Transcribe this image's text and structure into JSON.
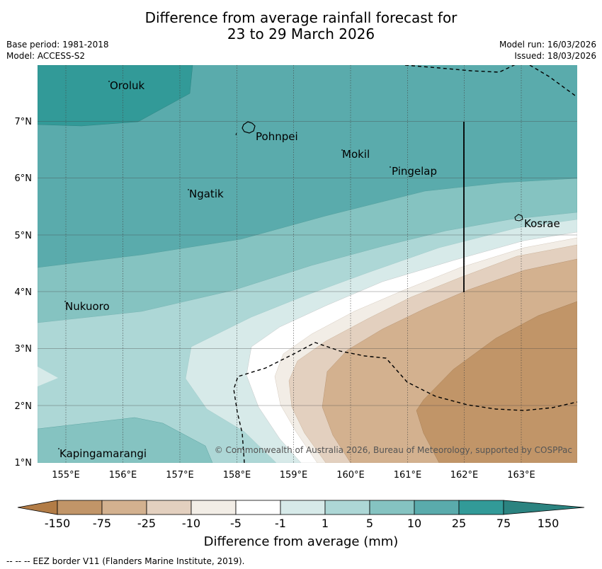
{
  "title": {
    "line1": "Difference from average rainfall forecast for",
    "line2": "23 to 29 March 2026"
  },
  "meta": {
    "base_period": "Base period: 1981-2018",
    "model": "Model: ACCESS-S2",
    "model_run": "Model run: 16/03/2026",
    "issued": "Issued: 18/03/2026"
  },
  "map": {
    "lat_labels": [
      "7°N",
      "6°N",
      "5°N",
      "4°N",
      "3°N",
      "2°N",
      "1°N"
    ],
    "lon_labels": [
      "155°E",
      "156°E",
      "157°E",
      "158°E",
      "159°E",
      "160°E",
      "161°E",
      "162°E",
      "163°E"
    ],
    "places": {
      "oroluk": "Oroluk",
      "pohnpei": "Pohnpei",
      "mokil": "Mokil",
      "pingelap": "Pingelap",
      "ngatik": "Ngatik",
      "kosrae": "Kosrae",
      "nukuoro": "Nukuoro",
      "kapingamarangi": "Kapingamarangi"
    },
    "copyright": "© Commonwealth of Australia 2026, Bureau of Meteorology, supported by COSPPac"
  },
  "colorbar": {
    "labels": [
      "-150",
      "-75",
      "-25",
      "-10",
      "-5",
      "-1",
      "1",
      "5",
      "10",
      "25",
      "75",
      "150"
    ],
    "colors": [
      "#b27c46",
      "#c19568",
      "#d3b18f",
      "#e3d0bf",
      "#f2ede6",
      "#ffffff",
      "#d7eae9",
      "#add7d6",
      "#85c3c1",
      "#5aabac",
      "#329a98",
      "#2b8380"
    ],
    "title": "Difference from average (mm)"
  },
  "footer": {
    "eez_note": "--  --  -- EEZ border V11 (Flanders Marine Institute, 2019)."
  }
}
